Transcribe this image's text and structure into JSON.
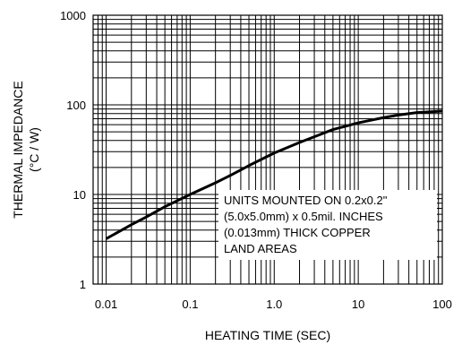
{
  "chart_data": {
    "type": "line",
    "xlabel": "HEATING TIME (SEC)",
    "ylabel_line1": "THERMAL IMPEDANCE",
    "ylabel_line2": "(°C / W)",
    "x_scale": "log",
    "y_scale": "log",
    "xlim": [
      0.007,
      100
    ],
    "ylim": [
      1,
      1000
    ],
    "grid": true,
    "x_tick_values": [
      0.01,
      0.1,
      1.0,
      10,
      100
    ],
    "x_tick_labels": [
      "0.01",
      "0.1",
      "1.0",
      "10",
      "100"
    ],
    "y_tick_values": [
      1,
      10,
      100,
      1000
    ],
    "y_tick_labels": [
      "1",
      "10",
      "100",
      "1000"
    ],
    "series": [
      {
        "x": [
          0.01,
          0.02,
          0.03,
          0.05,
          0.1,
          0.2,
          0.3,
          0.5,
          1,
          2,
          3,
          5,
          10,
          20,
          30,
          50,
          100
        ],
        "y": [
          3.2,
          4.6,
          5.6,
          7.3,
          10,
          13.5,
          16.3,
          21,
          29,
          38,
          44,
          53,
          63,
          72,
          77,
          82,
          85
        ]
      }
    ],
    "annotation": [
      "UNITS MOUNTED ON 0.2x0.2\"",
      "(5.0x5.0mm) x 0.5mil. INCHES",
      "(0.013mm) THICK COPPER",
      "LAND AREAS"
    ],
    "colors": {
      "line": "#000000",
      "grid": "#000000",
      "background": "#ffffff"
    }
  }
}
